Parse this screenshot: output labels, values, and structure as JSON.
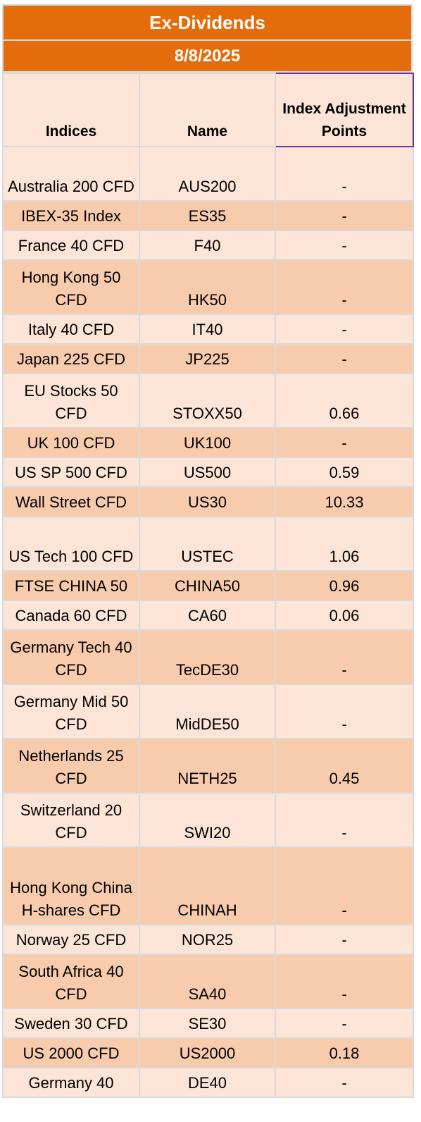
{
  "header": {
    "title": "Ex-Dividends",
    "date": "8/8/2025"
  },
  "colors": {
    "header_bg": "#e46c0a",
    "row_light": "#fce4d6",
    "row_dark": "#f8cbad",
    "highlight_border": "#7030a0"
  },
  "table": {
    "columns": [
      "Indices",
      "Name",
      "Index Adjustment Points"
    ],
    "rows": [
      {
        "index": "Australia 200 CFD",
        "name": "AUS200",
        "points": "-"
      },
      {
        "index": "IBEX-35 Index",
        "name": "ES35",
        "points": "-"
      },
      {
        "index": "France 40 CFD",
        "name": "F40",
        "points": "-"
      },
      {
        "index": "Hong Kong 50 CFD",
        "name": "HK50",
        "points": "-"
      },
      {
        "index": "Italy 40 CFD",
        "name": "IT40",
        "points": "-"
      },
      {
        "index": "Japan 225 CFD",
        "name": "JP225",
        "points": "-"
      },
      {
        "index": "EU Stocks 50 CFD",
        "name": "STOXX50",
        "points": "0.66"
      },
      {
        "index": "UK 100 CFD",
        "name": "UK100",
        "points": "-"
      },
      {
        "index": "US SP 500 CFD",
        "name": "US500",
        "points": "0.59"
      },
      {
        "index": "Wall Street CFD",
        "name": "US30",
        "points": "10.33"
      },
      {
        "index": "US Tech 100 CFD",
        "name": "USTEC",
        "points": "1.06"
      },
      {
        "index": "FTSE CHINA 50",
        "name": "CHINA50",
        "points": "0.96"
      },
      {
        "index": "Canada 60 CFD",
        "name": "CA60",
        "points": "0.06"
      },
      {
        "index": "Germany Tech 40 CFD",
        "name": "TecDE30",
        "points": "-"
      },
      {
        "index": "Germany Mid 50 CFD",
        "name": "MidDE50",
        "points": "-"
      },
      {
        "index": "Netherlands 25 CFD",
        "name": "NETH25",
        "points": "0.45"
      },
      {
        "index": "Switzerland 20 CFD",
        "name": "SWI20",
        "points": "-"
      },
      {
        "index": "Hong Kong China H-shares CFD",
        "name": "CHINAH",
        "points": "-"
      },
      {
        "index": "Norway 25 CFD",
        "name": "NOR25",
        "points": "-"
      },
      {
        "index": "South Africa 40 CFD",
        "name": "SA40",
        "points": "-"
      },
      {
        "index": "Sweden 30 CFD",
        "name": "SE30",
        "points": "-"
      },
      {
        "index": "US 2000 CFD",
        "name": "US2000",
        "points": "0.18"
      },
      {
        "index": "Germany 40",
        "name": "DE40",
        "points": "-"
      }
    ]
  }
}
